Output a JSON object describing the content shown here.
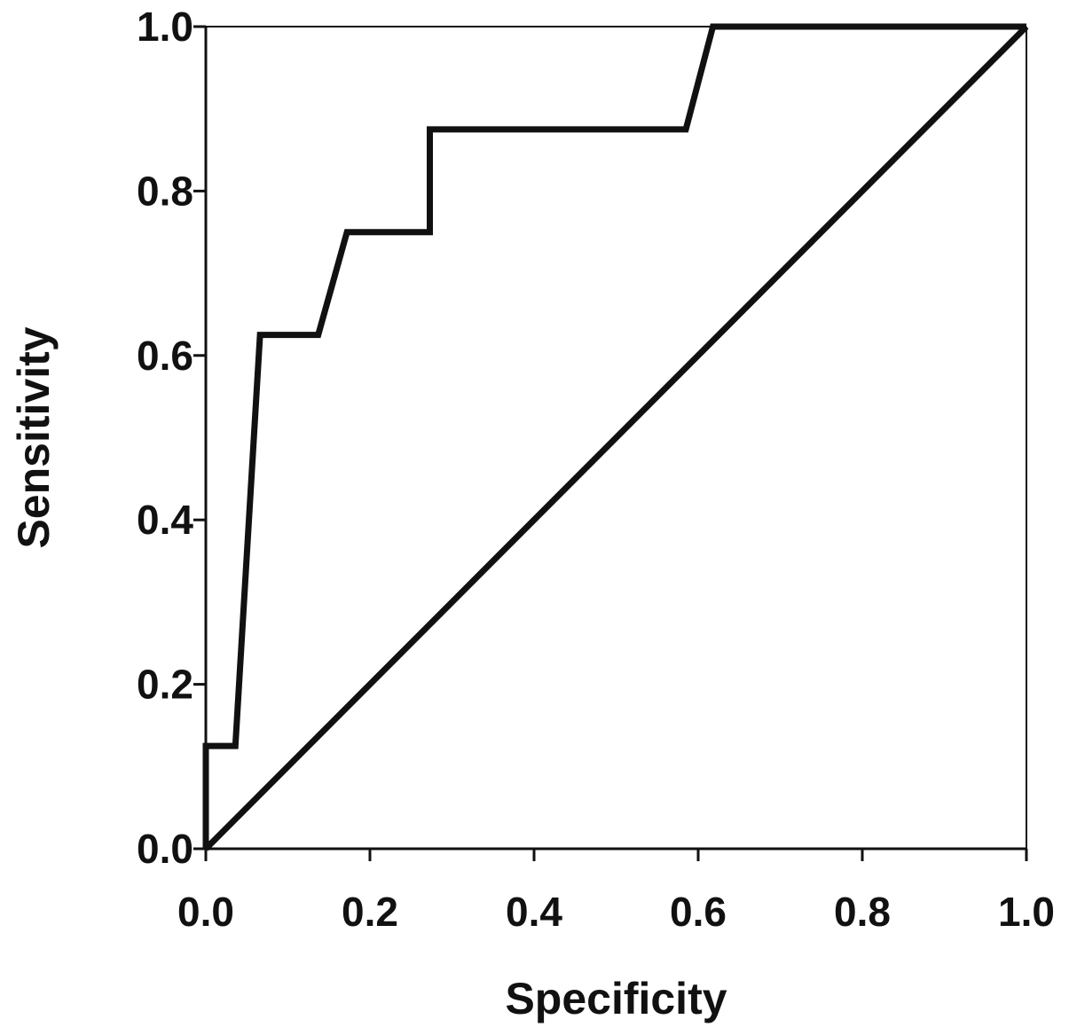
{
  "chart_data": {
    "type": "line",
    "title": "",
    "xlabel": "Specificity",
    "ylabel": "Sensitivity",
    "xlim": [
      0,
      1
    ],
    "ylim": [
      0,
      1
    ],
    "grid": false,
    "legend": "none",
    "x_ticks": [
      "0.0",
      "0.2",
      "0.4",
      "0.6",
      "0.8",
      "1.0"
    ],
    "y_ticks": [
      "0.0",
      "0.2",
      "0.4",
      "0.6",
      "0.8",
      "1.0"
    ],
    "colors": {
      "line": "#111111",
      "axes": "#111111",
      "background": "#ffffff"
    },
    "series": [
      {
        "name": "",
        "points": [
          [
            0.0,
            0.0
          ],
          [
            0.0,
            0.125
          ],
          [
            0.036,
            0.125
          ],
          [
            0.066,
            0.625
          ],
          [
            0.137,
            0.625
          ],
          [
            0.172,
            0.75
          ],
          [
            0.273,
            0.75
          ],
          [
            0.273,
            0.875
          ],
          [
            0.585,
            0.875
          ],
          [
            0.618,
            1.0
          ],
          [
            1.0,
            1.0
          ]
        ]
      },
      {
        "name": "",
        "points": [
          [
            0.0,
            0.0
          ],
          [
            1.0,
            1.0
          ]
        ]
      }
    ]
  }
}
